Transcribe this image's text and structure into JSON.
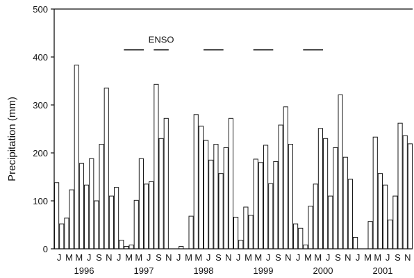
{
  "chart_data": {
    "type": "bar",
    "title": "",
    "xlabel": "",
    "ylabel": "Precipitation (mm)",
    "ylim": [
      0,
      500
    ],
    "yticks": [
      0,
      100,
      200,
      300,
      400,
      500
    ],
    "grid": false,
    "month_labels": [
      "J",
      "M",
      "M",
      "J",
      "S",
      "N",
      "J",
      "M",
      "M",
      "J",
      "S",
      "N",
      "J",
      "M",
      "M",
      "J",
      "S",
      "N",
      "J",
      "M",
      "M",
      "J",
      "S",
      "N",
      "J",
      "M",
      "M",
      "J",
      "S",
      "N",
      "J",
      "M",
      "M",
      "J",
      "S",
      "N"
    ],
    "years": [
      "1996",
      "1997",
      "1998",
      "1999",
      "2000",
      "2001"
    ],
    "annotation": {
      "label": "ENSO",
      "value": 415
    },
    "enso_periods": [
      {
        "start_month_index": 14,
        "end_month_index": 18
      },
      {
        "start_month_index": 20,
        "end_month_index": 23
      },
      {
        "start_month_index": 30,
        "end_month_index": 34
      },
      {
        "start_month_index": 40,
        "end_month_index": 44
      },
      {
        "start_month_index": 50,
        "end_month_index": 54
      }
    ],
    "series": [
      {
        "values": [
          138,
          52,
          64,
          123,
          383,
          178,
          133,
          188,
          100,
          218,
          335,
          110,
          128,
          18,
          5,
          8,
          101,
          188,
          135,
          140,
          343,
          230,
          272,
          0,
          0,
          5,
          0,
          68,
          280,
          256,
          226,
          185,
          218,
          157,
          211,
          272,
          66,
          18,
          87,
          70,
          187,
          180,
          216,
          136,
          182,
          258,
          296,
          218,
          52,
          43,
          8,
          89,
          135,
          251,
          230,
          110,
          211,
          321,
          191,
          145,
          24,
          0,
          0,
          57,
          233,
          157,
          133,
          60,
          110,
          262,
          236,
          219
        ]
      }
    ]
  }
}
